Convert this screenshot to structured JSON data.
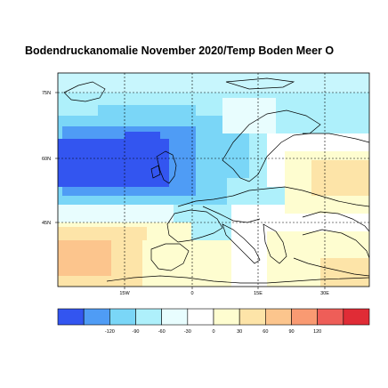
{
  "title": "Bodendruckanomalie November 2020/Temp Boden Meer O",
  "map": {
    "lat_labels": [
      "75N",
      "60N",
      "45N"
    ],
    "lon_labels": [
      "15W",
      "0",
      "15E",
      "30E"
    ]
  },
  "colorbar": {
    "labels": [
      "-120",
      "-90",
      "-60",
      "-30",
      "0",
      "30",
      "60",
      "90",
      "120"
    ],
    "colors": [
      "#3355f0",
      "#4f9cf5",
      "#7ad6f7",
      "#aef0fb",
      "#e8fdfe",
      "#ffffff",
      "#fefdd0",
      "#fde4a8",
      "#fcc58d",
      "#f99a72",
      "#ee5e58",
      "#e02c36"
    ]
  }
}
